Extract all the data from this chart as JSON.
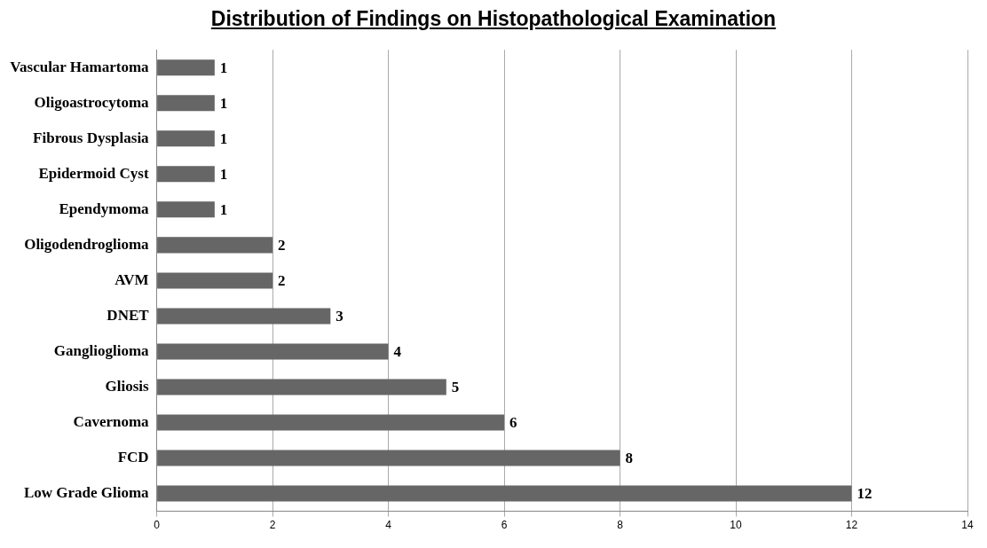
{
  "chart_data": {
    "type": "bar",
    "orientation": "horizontal",
    "title": "Distribution of Findings on Histopathological Examination",
    "categories": [
      "Vascular Hamartoma",
      "Oligoastrocytoma",
      "Fibrous Dysplasia",
      "Epidermoid Cyst",
      "Ependymoma",
      "Oligodendroglioma",
      "AVM",
      "DNET",
      "Ganglioglioma",
      "Gliosis",
      "Cavernoma",
      "FCD",
      "Low Grade Glioma"
    ],
    "values": [
      1,
      1,
      1,
      1,
      1,
      2,
      2,
      3,
      4,
      5,
      6,
      8,
      12
    ],
    "color": "#666666",
    "xlim": [
      0,
      14
    ],
    "xticks": [
      0,
      2,
      4,
      6,
      8,
      10,
      12,
      14
    ],
    "grid": "x",
    "data_labels": true
  }
}
